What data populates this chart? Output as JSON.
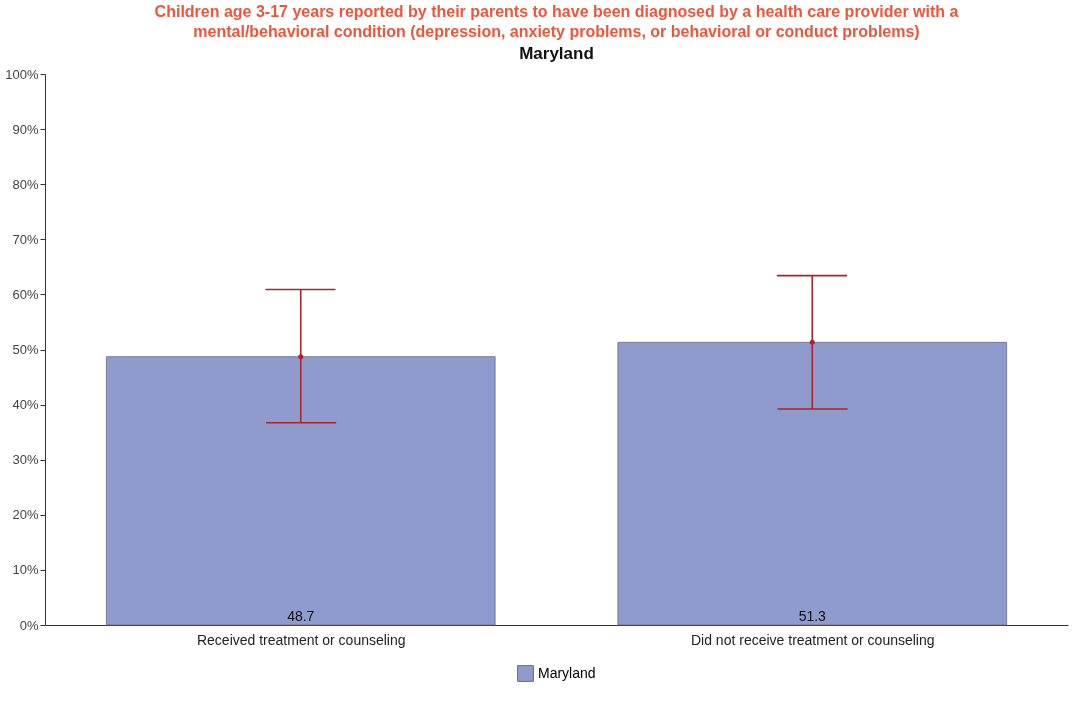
{
  "chart_data": {
    "type": "bar",
    "title": "Children age 3-17 years reported by their parents to have been diagnosed by a health care provider with a mental/behavioral condition (depression, anxiety problems, or behavioral or conduct problems)",
    "subtitle": "Maryland",
    "categories": [
      "Received treatment or counseling",
      "Did not receive treatment or counseling"
    ],
    "series": [
      {
        "name": "Maryland",
        "color": "#8f9bcc",
        "values": [
          48.7,
          51.3
        ],
        "errors": [
          [
            36.7,
            60.9
          ],
          [
            39.2,
            63.4
          ]
        ]
      }
    ],
    "ylim": [
      0,
      100
    ],
    "yticks": [
      {
        "value": 0,
        "label": "0%"
      },
      {
        "value": 10,
        "label": "10%"
      },
      {
        "value": 20,
        "label": "20%"
      },
      {
        "value": 30,
        "label": "30%"
      },
      {
        "value": 40,
        "label": "40%"
      },
      {
        "value": 50,
        "label": "50%"
      },
      {
        "value": 60,
        "label": "60%"
      },
      {
        "value": 70,
        "label": "70%"
      },
      {
        "value": 80,
        "label": "80%"
      },
      {
        "value": 90,
        "label": "90%"
      },
      {
        "value": 100,
        "label": "100%"
      }
    ],
    "grid": false,
    "legend": "bottom",
    "data_labels": true
  }
}
